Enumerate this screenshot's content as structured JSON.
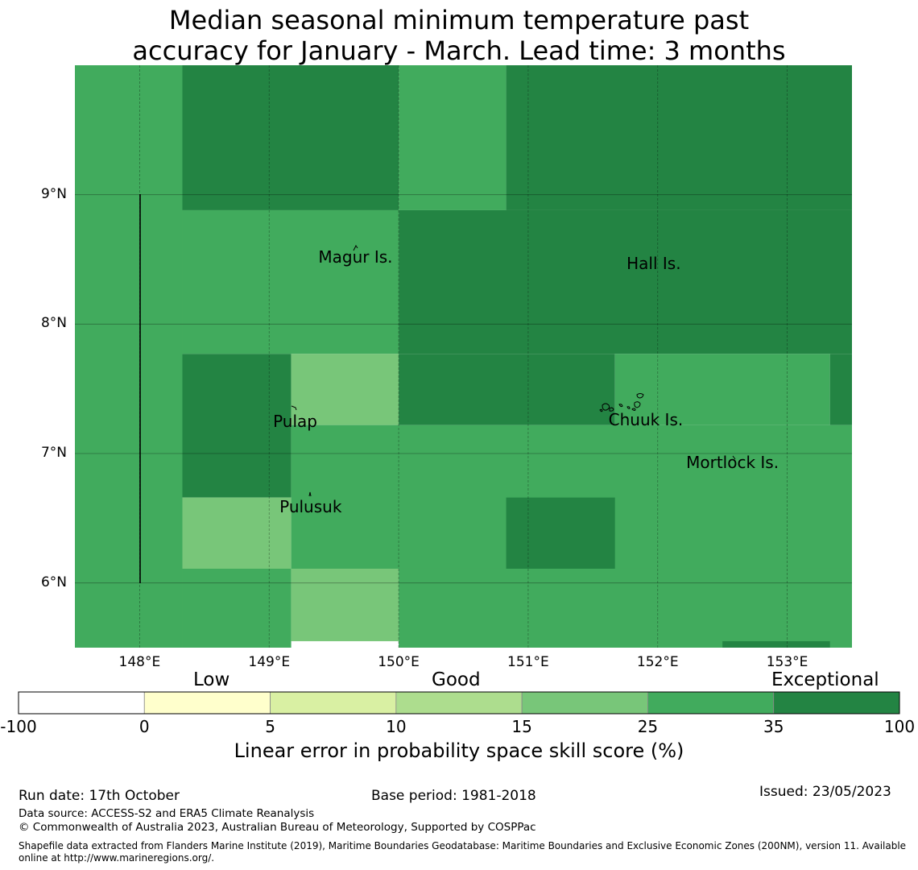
{
  "title": {
    "line1": "Median seasonal minimum temperature past",
    "line2": "accuracy for January - March. Lead time: 3 months"
  },
  "map": {
    "lon_range": [
      147.5,
      153.5
    ],
    "lat_range": [
      5.5,
      10.0
    ],
    "lat_ticks": [
      {
        "value": 9,
        "label": "9°N"
      },
      {
        "value": 8,
        "label": "8°N"
      },
      {
        "value": 7,
        "label": "7°N"
      },
      {
        "value": 6,
        "label": "6°N"
      }
    ],
    "lon_ticks": [
      {
        "value": 148,
        "label": "148°E"
      },
      {
        "value": 149,
        "label": "149°E"
      },
      {
        "value": 150,
        "label": "150°E"
      },
      {
        "value": 151,
        "label": "151°E"
      },
      {
        "value": 152,
        "label": "152°E"
      },
      {
        "value": 153,
        "label": "153°E"
      }
    ],
    "places": [
      {
        "name": "Magur Is.",
        "lon": 149.38,
        "lat": 8.52
      },
      {
        "name": "Hall Is.",
        "lon": 151.76,
        "lat": 8.47
      },
      {
        "name": "Pulap",
        "lon": 149.03,
        "lat": 7.25
      },
      {
        "name": "Chuuk Is.",
        "lon": 151.62,
        "lat": 7.26
      },
      {
        "name": "Mortlock Is.",
        "lon": 152.22,
        "lat": 6.93
      },
      {
        "name": "Pulusuk",
        "lon": 149.08,
        "lat": 6.59
      }
    ]
  },
  "colors": {
    "class_0_5": "#ffffcc",
    "class_5_10": "#d9f0a3",
    "class_10_15": "#addd8e",
    "class_15_25": "#78c679",
    "class_25_35": "#41ab5d",
    "class_35_100": "#238443",
    "below_0": "#ffffff"
  },
  "grid_skill": {
    "description_note": "skill class per grid cell, left to right, top to bottom",
    "cells": [
      {
        "lon0": 147.5,
        "lon1": 148.33,
        "lat0": 5.5,
        "lat1": 10.0,
        "cls": "class_25_35"
      },
      {
        "lon0": 148.33,
        "lon1": 150.0,
        "lat0": 8.88,
        "lat1": 10.0,
        "cls": "class_35_100"
      },
      {
        "lon0": 150.0,
        "lon1": 150.83,
        "lat0": 8.88,
        "lat1": 10.0,
        "cls": "class_25_35"
      },
      {
        "lon0": 150.83,
        "lon1": 153.5,
        "lat0": 8.88,
        "lat1": 10.0,
        "cls": "class_35_100"
      },
      {
        "lon0": 148.33,
        "lon1": 150.0,
        "lat0": 7.77,
        "lat1": 8.88,
        "cls": "class_25_35"
      },
      {
        "lon0": 150.0,
        "lon1": 153.5,
        "lat0": 7.77,
        "lat1": 8.88,
        "cls": "class_35_100"
      },
      {
        "lon0": 148.33,
        "lon1": 149.17,
        "lat0": 6.66,
        "lat1": 7.77,
        "cls": "class_35_100"
      },
      {
        "lon0": 149.17,
        "lon1": 150.0,
        "lat0": 7.22,
        "lat1": 7.77,
        "cls": "class_15_25"
      },
      {
        "lon0": 150.0,
        "lon1": 151.67,
        "lat0": 7.22,
        "lat1": 7.77,
        "cls": "class_35_100"
      },
      {
        "lon0": 151.67,
        "lon1": 153.33,
        "lat0": 7.22,
        "lat1": 7.77,
        "cls": "class_25_35"
      },
      {
        "lon0": 153.33,
        "lon1": 153.5,
        "lat0": 7.22,
        "lat1": 7.77,
        "cls": "class_35_100"
      },
      {
        "lon0": 149.17,
        "lon1": 153.5,
        "lat0": 6.11,
        "lat1": 7.22,
        "cls": "class_25_35"
      },
      {
        "lon0": 148.33,
        "lon1": 149.17,
        "lat0": 6.11,
        "lat1": 6.66,
        "cls": "class_15_25"
      },
      {
        "lon0": 150.83,
        "lon1": 151.67,
        "lat0": 6.11,
        "lat1": 6.66,
        "cls": "class_35_100"
      },
      {
        "lon0": 148.33,
        "lon1": 149.17,
        "lat0": 5.5,
        "lat1": 6.11,
        "cls": "class_25_35"
      },
      {
        "lon0": 149.17,
        "lon1": 150.0,
        "lat0": 5.55,
        "lat1": 6.11,
        "cls": "class_15_25"
      },
      {
        "lon0": 150.0,
        "lon1": 153.5,
        "lat0": 5.5,
        "lat1": 6.11,
        "cls": "class_25_35"
      },
      {
        "lon0": 152.5,
        "lon1": 153.33,
        "lat0": 5.5,
        "lat1": 5.55,
        "cls": "class_35_100"
      }
    ]
  },
  "colorbar": {
    "category_labels": [
      "Low",
      "Good",
      "Exceptional"
    ],
    "ticks": [
      "-100",
      "0",
      "5",
      "10",
      "15",
      "25",
      "35",
      "100"
    ],
    "label": "Linear error in probability space skill score (%)"
  },
  "footer": {
    "run_date": "Run date: 17th October",
    "base_period": "Base period: 1981-2018",
    "issued": "Issued: 23/05/2023",
    "data_source": "Data source: ACCESS-S2 and ERA5 Climate Reanalysis",
    "copyright": "© Commonwealth of Australia 2023, Australian Bureau of Meteorology, Supported by COSPPac",
    "shapefile": "Shapefile data extracted from Flanders Marine Institute (2019), Maritime Boundaries Geodatabase: Maritime Boundaries and Exclusive Economic Zones (200NM), version 11. Available online at http://www.marineregions.org/."
  }
}
